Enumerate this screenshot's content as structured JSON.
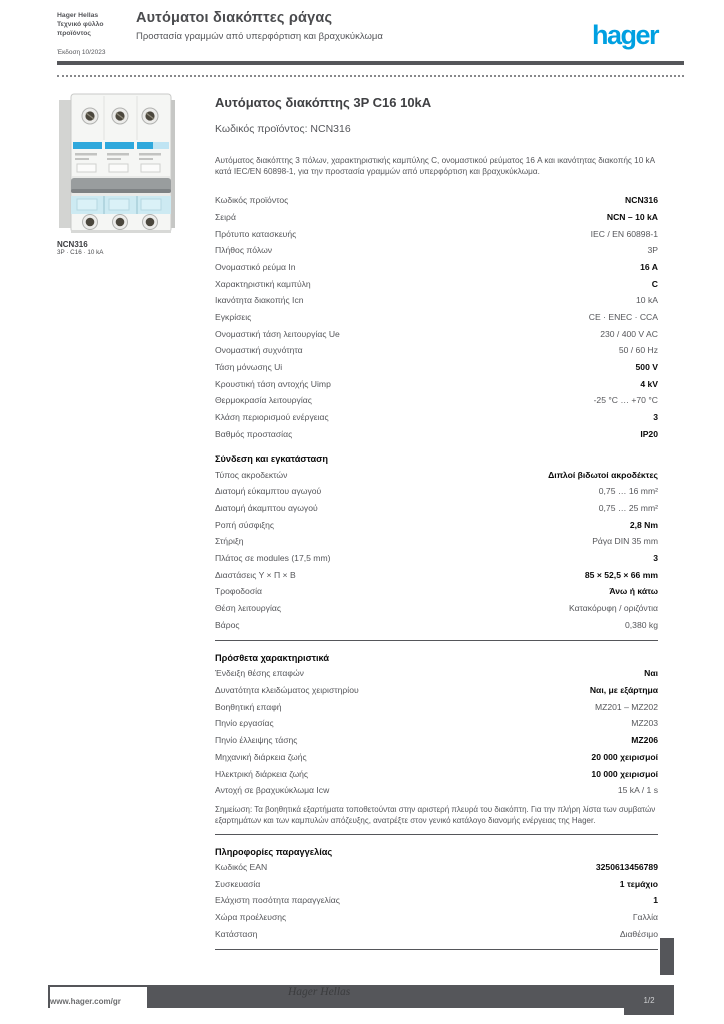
{
  "colors": {
    "brand": "#00a0e1",
    "ink": "#0a0a0a",
    "gray": "#55565a"
  },
  "header": {
    "mini_lines": [
      "Hager Hellas",
      "Τεχνικό φύλλο",
      "προϊόντος"
    ],
    "title": "Αυτόματοι διακόπτες ράγας",
    "subtitle": "Προστασία γραμμών από υπερφόρτιση και βραχυκύκλωμα",
    "version": "Έκδοση 10/2023",
    "logo": "hager"
  },
  "product": {
    "image_alt": "Τριπολικός αυτόματος διακόπτης Hager",
    "caption_ref": "NCN316",
    "caption_sub": "3P · C16 · 10 kA",
    "title": "Αυτόματος διακόπτης 3P C16 10kA",
    "subtitle": "Κωδικός προϊόντος: NCN316",
    "intro": "Αυτόματος διακόπτης 3 πόλων, χαρακτηριστικής καμπύλης C, ονομαστικού ρεύματος 16 A και ικανότητας διακοπής 10 kA κατά IEC/EN 60898-1, για την προστασία γραμμών από υπερφόρτιση και βραχυκύκλωμα."
  },
  "sections": [
    {
      "id": "general",
      "header": null,
      "divider_before": false,
      "rows": [
        {
          "label": "Κωδικός προϊόντος",
          "value": "NCN316",
          "strong": true
        },
        {
          "label": "Σειρά",
          "value": "NCN – 10 kA",
          "strong": true
        },
        {
          "label": "Πρότυπο κατασκευής",
          "value": "IEC / EN 60898-1",
          "strong": false
        },
        {
          "label": "Πλήθος πόλων",
          "value": "3P",
          "strong": false
        },
        {
          "label": "Ονομαστικό ρεύμα In",
          "value": "16 A",
          "strong": true
        },
        {
          "label": "Χαρακτηριστική καμπύλη",
          "value": "C",
          "strong": true
        },
        {
          "label": "Ικανότητα διακοπής Icn",
          "value": "10 kA",
          "strong": false
        },
        {
          "label": "Εγκρίσεις",
          "value": "CE · ENEC · CCA",
          "strong": false
        },
        {
          "label": "Ονομαστική τάση λειτουργίας Ue",
          "value": "230 / 400 V AC",
          "strong": false
        },
        {
          "label": "Ονομαστική συχνότητα",
          "value": "50 / 60 Hz",
          "strong": false
        },
        {
          "label": "Τάση μόνωσης Ui",
          "value": "500 V",
          "strong": true
        },
        {
          "label": "Κρουστική τάση αντοχής Uimp",
          "value": "4 kV",
          "strong": true
        },
        {
          "label": "Θερμοκρασία λειτουργίας",
          "value": "-25 °C … +70 °C",
          "strong": false
        },
        {
          "label": "Κλάση περιορισμού ενέργειας",
          "value": "3",
          "strong": true
        },
        {
          "label": "Βαθμός προστασίας",
          "value": "IP20",
          "strong": true
        }
      ]
    },
    {
      "id": "installation",
      "header": "Σύνδεση και εγκατάσταση",
      "divider_before": false,
      "rows": [
        {
          "label": "Τύπος ακροδεκτών",
          "value": "Διπλοί βιδωτοί ακροδέκτες",
          "strong": true
        },
        {
          "label": "Διατομή εύκαμπτου αγωγού",
          "value": "0,75 … 16 mm²",
          "strong": false
        },
        {
          "label": "Διατομή άκαμπτου αγωγού",
          "value": "0,75 … 25 mm²",
          "strong": false
        },
        {
          "label": "Ροπή σύσφιξης",
          "value": "2,8 Nm",
          "strong": true
        },
        {
          "label": "Στήριξη",
          "value": "Ράγα DIN 35 mm",
          "strong": false
        },
        {
          "label": "Πλάτος σε modules (17,5 mm)",
          "value": "3",
          "strong": true
        },
        {
          "label": "Διαστάσεις Υ × Π × Β",
          "value": "85 × 52,5 × 66 mm",
          "strong": true
        },
        {
          "label": "Τροφοδοσία",
          "value": "Άνω ή κάτω",
          "strong": true
        },
        {
          "label": "Θέση λειτουργίας",
          "value": "Κατακόρυφη / οριζόντια",
          "strong": false
        },
        {
          "label": "Βάρος",
          "value": "0,380 kg",
          "strong": false
        }
      ]
    },
    {
      "id": "additional",
      "header": "Πρόσθετα χαρακτηριστικά",
      "divider_before": true,
      "rows": [
        {
          "label": "Ένδειξη θέσης επαφών",
          "value": "Ναι",
          "strong": true
        },
        {
          "label": "Δυνατότητα κλειδώματος χειριστηρίου",
          "value": "Ναι, με εξάρτημα",
          "strong": true
        },
        {
          "label": "Βοηθητική επαφή",
          "value": "MZ201 – MZ202",
          "strong": false
        },
        {
          "label": "Πηνίο εργασίας",
          "value": "MZ203",
          "strong": false
        },
        {
          "label": "Πηνίο έλλειψης τάσης",
          "value": "MZ206",
          "strong": true
        },
        {
          "label": "Μηχανική διάρκεια ζωής",
          "value": "20 000 χειρισμοί",
          "strong": true
        },
        {
          "label": "Ηλεκτρική διάρκεια ζωής",
          "value": "10 000 χειρισμοί",
          "strong": true
        },
        {
          "label": "Αντοχή σε βραχυκύκλωμα Icw",
          "value": "15 kA / 1 s",
          "strong": false
        }
      ],
      "note": "Σημείωση: Τα βοηθητικά εξαρτήματα τοποθετούνται στην αριστερή πλευρά του διακόπτη. Για την πλήρη λίστα των συμβατών εξαρτημάτων και των καμπυλών απόζευξης, ανατρέξτε στον γενικό κατάλογο διανομής ενέργειας της Hager."
    },
    {
      "id": "ordering",
      "header": "Πληροφορίες παραγγελίας",
      "divider_before": true,
      "rows": [
        {
          "label": "Κωδικός EAN",
          "value": "3250613456789",
          "strong": true
        },
        {
          "label": "Συσκευασία",
          "value": "1 τεμάχιο",
          "strong": true
        },
        {
          "label": "Ελάχιστη ποσότητα παραγγελίας",
          "value": "1",
          "strong": true
        },
        {
          "label": "Χώρα προέλευσης",
          "value": "Γαλλία",
          "strong": false
        },
        {
          "label": "Κατάσταση",
          "value": "Διαθέσιμο",
          "strong": false
        }
      ]
    }
  ],
  "end_divider": true,
  "footer": {
    "url": "www.hager.com/gr",
    "center_text": "Hager Hellas",
    "page": "1/2"
  }
}
